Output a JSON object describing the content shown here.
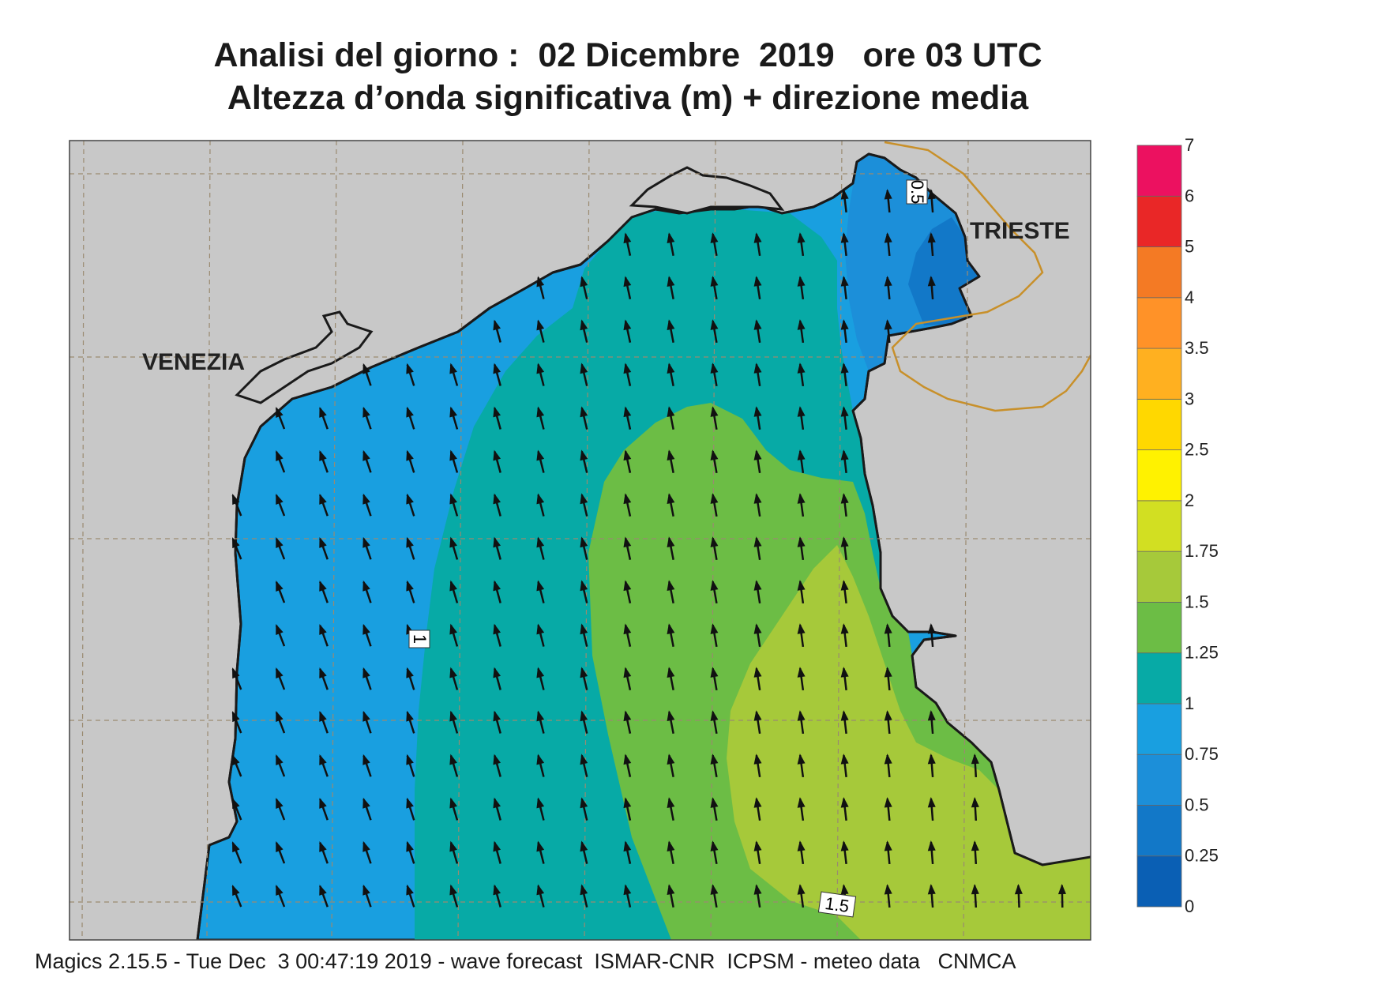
{
  "title": {
    "line1": "Analisi del giorno :  02 Dicembre  2019   ore 03 UTC",
    "line2": "Altezza d’onda significativa (m) + direzione media"
  },
  "map": {
    "cities": {
      "venezia": "VENEZIA",
      "trieste": "TRIESTE"
    },
    "contour_labels": {
      "c1": "1",
      "c15": "1.5",
      "c05": "0.5"
    },
    "land_color": "#c8c8c8",
    "coast_color": "#1a1a1a",
    "border_color": "#c8902a",
    "arrow_direction": "north-northwest"
  },
  "colorbar": {
    "levels": [
      "0",
      "0.25",
      "0.5",
      "0.75",
      "1",
      "1.25",
      "1.5",
      "1.75",
      "2",
      "2.5",
      "3",
      "3.5",
      "4",
      "5",
      "6",
      "7"
    ],
    "colors": [
      "#0a5fb4",
      "#1278c8",
      "#1c8fd9",
      "#199fe0",
      "#07aaa6",
      "#6cbd45",
      "#a6c93a",
      "#d2df22",
      "#fff200",
      "#ffd800",
      "#ffb020",
      "#ff9228",
      "#f47a24",
      "#e92727",
      "#ec1160"
    ]
  },
  "footer": "Magics 2.15.5 - Tue Dec  3 00:47:19 2019 - wave forecast  ISMAR-CNR  ICPSM - meteo data   CNMCA"
}
